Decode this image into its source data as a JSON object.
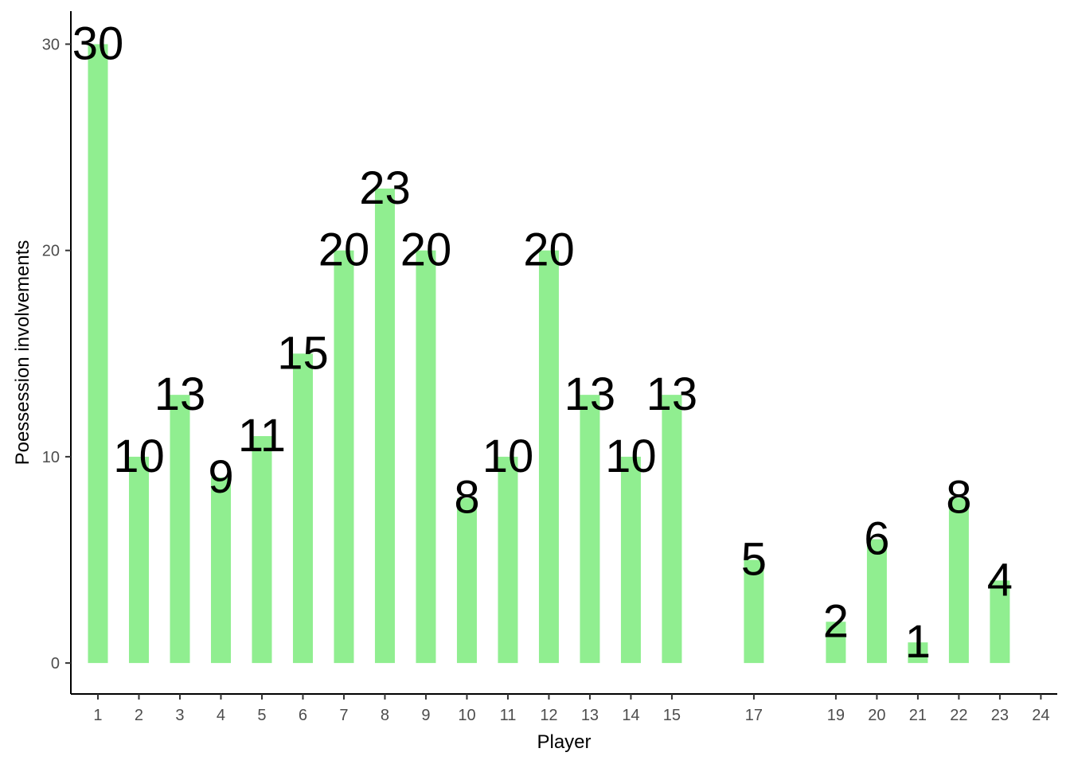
{
  "chart_data": {
    "type": "bar",
    "title": "",
    "xlabel": "Player",
    "ylabel": "Poessession involvements",
    "x_ticks": [
      "1",
      "2",
      "3",
      "4",
      "5",
      "6",
      "7",
      "8",
      "9",
      "10",
      "11",
      "12",
      "13",
      "14",
      "15",
      "17",
      "19",
      "20",
      "21",
      "22",
      "23",
      "24"
    ],
    "categories": [
      1,
      2,
      3,
      4,
      5,
      6,
      7,
      8,
      9,
      10,
      11,
      12,
      13,
      14,
      15,
      17,
      19,
      20,
      21,
      22,
      23
    ],
    "values": [
      30,
      10,
      13,
      9,
      11,
      15,
      20,
      23,
      20,
      8,
      10,
      20,
      13,
      10,
      13,
      5,
      2,
      6,
      1,
      8,
      4
    ],
    "y_ticks": [
      0,
      10,
      20,
      30
    ],
    "xlim": [
      0.34,
      24.4
    ],
    "ylim": [
      -1.5,
      31.6
    ],
    "bar_color": "#90EE90",
    "grid": false,
    "legend": "none"
  }
}
